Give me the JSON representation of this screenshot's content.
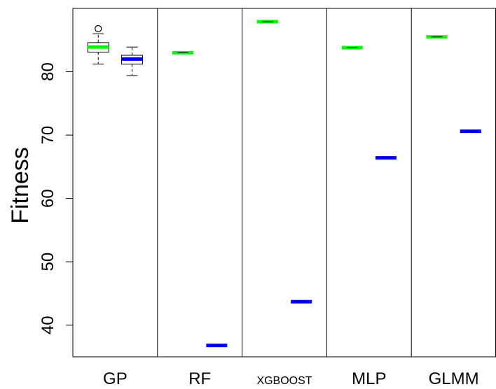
{
  "chart_data": {
    "type": "boxplot",
    "ylabel": "Fitness",
    "xlabel": "",
    "ylim": [
      35,
      90
    ],
    "yticks": [
      40,
      50,
      60,
      70,
      80
    ],
    "grid": false,
    "legend": "none",
    "categories": [
      {
        "label": "GP",
        "small": false
      },
      {
        "label": "RF",
        "small": false
      },
      {
        "label": "XGBOOST",
        "small": true
      },
      {
        "label": "MLP",
        "small": false
      },
      {
        "label": "GLMM",
        "small": false
      }
    ],
    "series_colors": {
      "training": "#00ff00",
      "test": "#0000ff"
    },
    "boxes": [
      {
        "group": 0,
        "series": "training",
        "whisker_low": 81.2,
        "q1": 83.1,
        "median": 83.9,
        "q3": 84.6,
        "whisker_high": 86.0,
        "outliers": [
          86.8
        ]
      },
      {
        "group": 0,
        "series": "test",
        "whisker_low": 79.4,
        "q1": 81.2,
        "median": 82.0,
        "q3": 82.6,
        "whisker_high": 83.9,
        "outliers": []
      },
      {
        "group": 1,
        "series": "training",
        "whisker_low": 83.0,
        "q1": 83.0,
        "median": 83.0,
        "q3": 83.0,
        "whisker_high": 83.0,
        "outliers": []
      },
      {
        "group": 1,
        "series": "test",
        "whisker_low": 36.8,
        "q1": 36.8,
        "median": 36.8,
        "q3": 36.8,
        "whisker_high": 36.8,
        "outliers": []
      },
      {
        "group": 2,
        "series": "training",
        "whisker_low": 87.9,
        "q1": 87.9,
        "median": 87.9,
        "q3": 87.9,
        "whisker_high": 87.9,
        "outliers": []
      },
      {
        "group": 2,
        "series": "test",
        "whisker_low": 43.7,
        "q1": 43.7,
        "median": 43.7,
        "q3": 43.7,
        "whisker_high": 43.7,
        "outliers": []
      },
      {
        "group": 3,
        "series": "training",
        "whisker_low": 83.8,
        "q1": 83.8,
        "median": 83.8,
        "q3": 83.8,
        "whisker_high": 83.8,
        "outliers": []
      },
      {
        "group": 3,
        "series": "test",
        "whisker_low": 66.4,
        "q1": 66.4,
        "median": 66.4,
        "q3": 66.4,
        "whisker_high": 66.4,
        "outliers": []
      },
      {
        "group": 4,
        "series": "training",
        "whisker_low": 85.5,
        "q1": 85.5,
        "median": 85.5,
        "q3": 85.5,
        "whisker_high": 85.5,
        "outliers": []
      },
      {
        "group": 4,
        "series": "test",
        "whisker_low": 70.6,
        "q1": 70.6,
        "median": 70.6,
        "q3": 70.6,
        "whisker_high": 70.6,
        "outliers": []
      }
    ]
  }
}
